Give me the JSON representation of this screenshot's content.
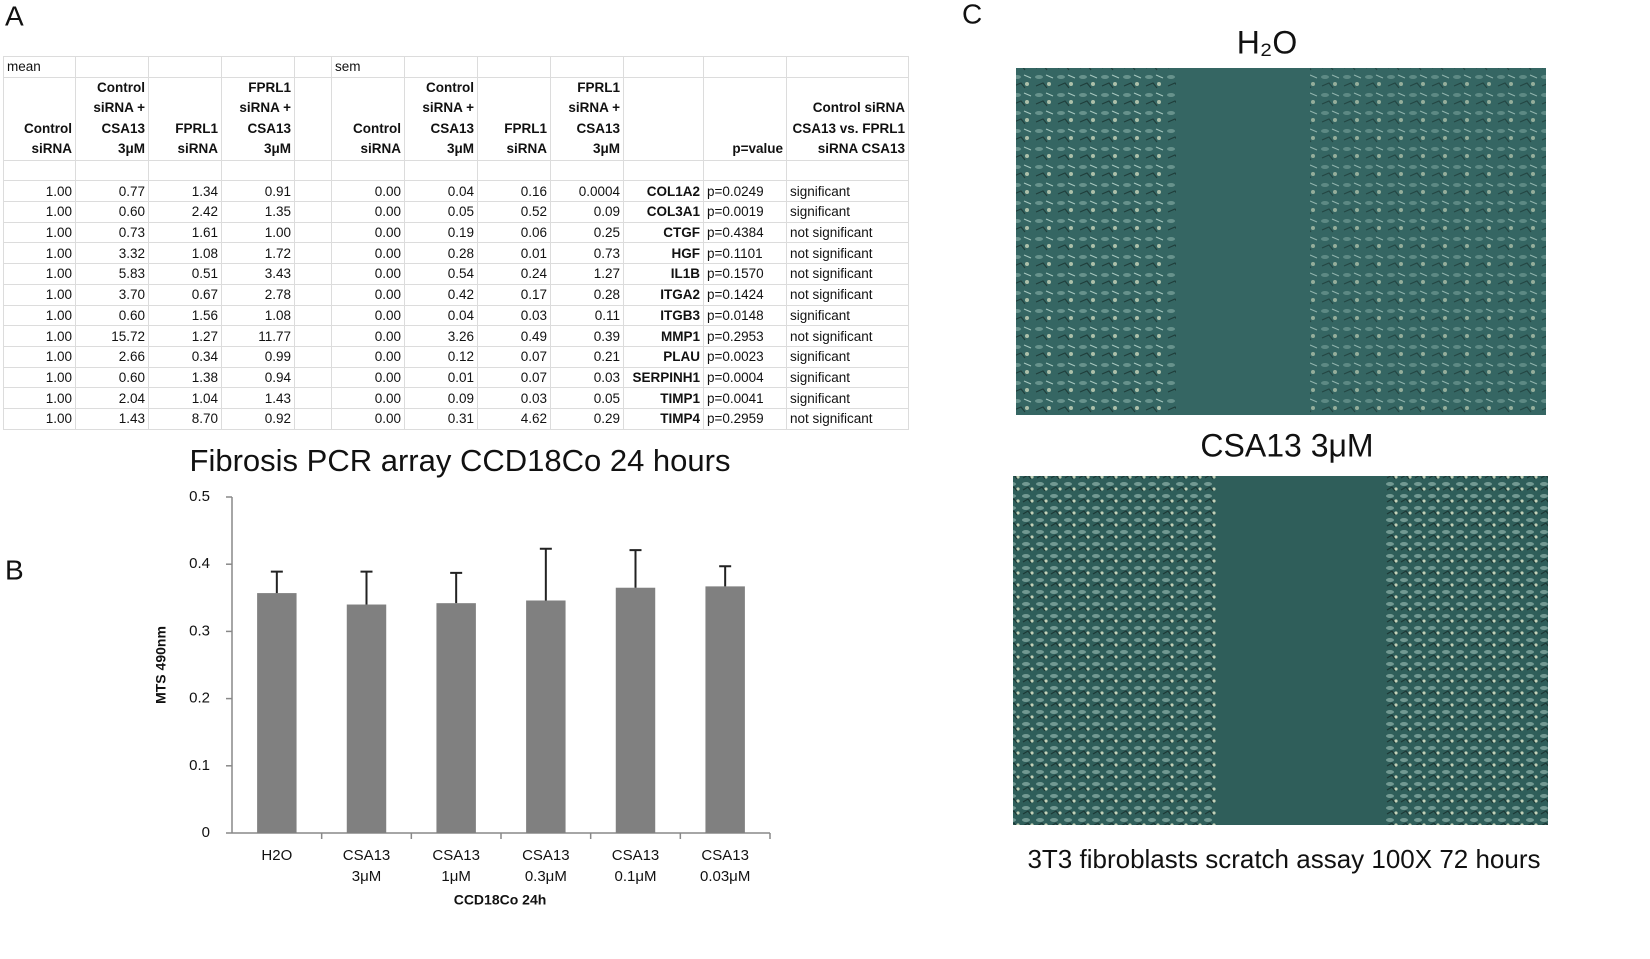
{
  "panels": {
    "a": "A",
    "b": "B",
    "c": "C"
  },
  "table": {
    "group_labels": [
      "mean",
      "sem"
    ],
    "mean_headers": [
      "Control siRNA",
      "Control siRNA + CSA13 3μM",
      "FPRL1 siRNA",
      "FPRL1 siRNA + CSA13 3μM"
    ],
    "sem_headers": [
      "Control siRNA",
      "Control siRNA + CSA13 3μM",
      "FPRL1 siRNA",
      "FPRL1 siRNA + CSA13 3μM"
    ],
    "p_header": "p=value",
    "comparison_header": "Control siRNA CSA13 vs. FPRL1 siRNA CSA13",
    "rows": [
      {
        "mean": [
          "1.00",
          "0.77",
          "1.34",
          "0.91"
        ],
        "sem": [
          "0.00",
          "0.04",
          "0.16",
          "0.0004"
        ],
        "gene": "COL1A2",
        "p": "p=0.0249",
        "result": "significant"
      },
      {
        "mean": [
          "1.00",
          "0.60",
          "2.42",
          "1.35"
        ],
        "sem": [
          "0.00",
          "0.05",
          "0.52",
          "0.09"
        ],
        "gene": "COL3A1",
        "p": "p=0.0019",
        "result": "significant"
      },
      {
        "mean": [
          "1.00",
          "0.73",
          "1.61",
          "1.00"
        ],
        "sem": [
          "0.00",
          "0.19",
          "0.06",
          "0.25"
        ],
        "gene": "CTGF",
        "p": "p=0.4384",
        "result": "not significant"
      },
      {
        "mean": [
          "1.00",
          "3.32",
          "1.08",
          "1.72"
        ],
        "sem": [
          "0.00",
          "0.28",
          "0.01",
          "0.73"
        ],
        "gene": "HGF",
        "p": "p=0.1101",
        "result": "not significant"
      },
      {
        "mean": [
          "1.00",
          "5.83",
          "0.51",
          "3.43"
        ],
        "sem": [
          "0.00",
          "0.54",
          "0.24",
          "1.27"
        ],
        "gene": "IL1B",
        "p": "p=0.1570",
        "result": "not significant"
      },
      {
        "mean": [
          "1.00",
          "3.70",
          "0.67",
          "2.78"
        ],
        "sem": [
          "0.00",
          "0.42",
          "0.17",
          "0.28"
        ],
        "gene": "ITGA2",
        "p": "p=0.1424",
        "result": "not significant"
      },
      {
        "mean": [
          "1.00",
          "0.60",
          "1.56",
          "1.08"
        ],
        "sem": [
          "0.00",
          "0.04",
          "0.03",
          "0.11"
        ],
        "gene": "ITGB3",
        "p": "p=0.0148",
        "result": "significant"
      },
      {
        "mean": [
          "1.00",
          "15.72",
          "1.27",
          "11.77"
        ],
        "sem": [
          "0.00",
          "3.26",
          "0.49",
          "0.39"
        ],
        "gene": "MMP1",
        "p": "p=0.2953",
        "result": "not significant"
      },
      {
        "mean": [
          "1.00",
          "2.66",
          "0.34",
          "0.99"
        ],
        "sem": [
          "0.00",
          "0.12",
          "0.07",
          "0.21"
        ],
        "gene": "PLAU",
        "p": "p=0.0023",
        "result": "significant"
      },
      {
        "mean": [
          "1.00",
          "0.60",
          "1.38",
          "0.94"
        ],
        "sem": [
          "0.00",
          "0.01",
          "0.07",
          "0.03"
        ],
        "gene": "SERPINH1",
        "p": "p=0.0004",
        "result": "significant"
      },
      {
        "mean": [
          "1.00",
          "2.04",
          "1.04",
          "1.43"
        ],
        "sem": [
          "0.00",
          "0.09",
          "0.03",
          "0.05"
        ],
        "gene": "TIMP1",
        "p": "p=0.0041",
        "result": "significant"
      },
      {
        "mean": [
          "1.00",
          "1.43",
          "8.70",
          "0.92"
        ],
        "sem": [
          "0.00",
          "0.31",
          "4.62",
          "0.29"
        ],
        "gene": "TIMP4",
        "p": "p=0.2959",
        "result": "not significant"
      }
    ]
  },
  "chart_data": {
    "type": "bar",
    "title": "Fibrosis PCR array CCD18Co 24 hours",
    "y_label": "MTS 490nm",
    "x_label": "CCD18Co 24h",
    "categories": [
      "H2O",
      "CSA13 3μM",
      "CSA13 1μM",
      "CSA13 0.3μM",
      "CSA13 0.1μM",
      "CSA13 0.03μM"
    ],
    "values": [
      0.357,
      0.34,
      0.342,
      0.346,
      0.365,
      0.367
    ],
    "errors": [
      0.032,
      0.049,
      0.045,
      0.077,
      0.056,
      0.03
    ],
    "color": "#808080",
    "ylim": [
      0,
      0.5
    ],
    "yticks": [
      0,
      0.1,
      0.2,
      0.3,
      0.4,
      0.5
    ],
    "grid": false
  },
  "images": {
    "top_title": "H₂O",
    "bottom_title": "CSA13  3μM",
    "caption": "3T3 fibroblasts scratch assay 100X 72 hours"
  }
}
